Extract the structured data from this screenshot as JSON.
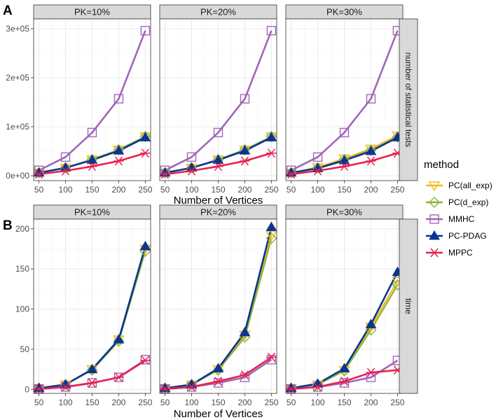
{
  "chart_data": [
    {
      "panel_label": "A",
      "type": "line",
      "facet_labels": [
        "PK=10%",
        "PK=20%",
        "PK=30%"
      ],
      "strip_label": "number of statistical tests",
      "xlabel": "Number of Vertices",
      "x": [
        50,
        100,
        150,
        200,
        250
      ],
      "ylim": [
        -10000,
        320000
      ],
      "yticks": [
        0,
        100000,
        200000,
        300000
      ],
      "ytick_labels": [
        "0e+00",
        "1e+05",
        "2e+05",
        "3e+05"
      ],
      "grid": true,
      "facets": [
        {
          "label": "PK=10%",
          "series": [
            {
              "name": "PC(all_exp)",
              "values": [
                6000,
                16000,
                33000,
                53000,
                80000
              ]
            },
            {
              "name": "PC(d_exp)",
              "values": [
                6000,
                16000,
                33000,
                53000,
                80000
              ]
            },
            {
              "name": "MMHC",
              "values": [
                11000,
                38000,
                88000,
                157000,
                296000
              ]
            },
            {
              "name": "PC-PDAG",
              "values": [
                6000,
                16000,
                32000,
                51000,
                78000
              ]
            },
            {
              "name": "MPPC",
              "values": [
                3000,
                10000,
                19000,
                30000,
                46000
              ]
            }
          ]
        },
        {
          "label": "PK=20%",
          "series": [
            {
              "name": "PC(all_exp)",
              "values": [
                6000,
                16000,
                33000,
                53000,
                80000
              ]
            },
            {
              "name": "PC(d_exp)",
              "values": [
                6000,
                16000,
                33000,
                53000,
                80000
              ]
            },
            {
              "name": "MMHC",
              "values": [
                11000,
                38000,
                88000,
                157000,
                296000
              ]
            },
            {
              "name": "PC-PDAG",
              "values": [
                6000,
                16000,
                32000,
                51000,
                78000
              ]
            },
            {
              "name": "MPPC",
              "values": [
                3000,
                10000,
                19000,
                30000,
                46000
              ]
            }
          ]
        },
        {
          "label": "PK=30%",
          "series": [
            {
              "name": "PC(all_exp)",
              "values": [
                6000,
                17000,
                35000,
                55000,
                82000
              ]
            },
            {
              "name": "PC(d_exp)",
              "values": [
                6000,
                16000,
                33000,
                52000,
                79000
              ]
            },
            {
              "name": "MMHC",
              "values": [
                11000,
                38000,
                88000,
                157000,
                296000
              ]
            },
            {
              "name": "PC-PDAG",
              "values": [
                6000,
                15000,
                31000,
                50000,
                78000
              ]
            },
            {
              "name": "MPPC",
              "values": [
                3000,
                10000,
                19000,
                30000,
                46000
              ]
            }
          ]
        }
      ]
    },
    {
      "panel_label": "B",
      "type": "line",
      "facet_labels": [
        "PK=10%",
        "PK=20%",
        "PK=30%"
      ],
      "strip_label": "time",
      "xlabel": "Number of Vertices",
      "x": [
        50,
        100,
        150,
        200,
        250
      ],
      "ylim": [
        -5,
        212
      ],
      "yticks": [
        0,
        50,
        100,
        150,
        200
      ],
      "ytick_labels": [
        "0",
        "50",
        "100",
        "150",
        "200"
      ],
      "grid": true,
      "facets": [
        {
          "label": "PK=10%",
          "series": [
            {
              "name": "PC(all_exp)",
              "values": [
                1.5,
                6,
                25,
                62,
                175
              ]
            },
            {
              "name": "PC(d_exp)",
              "values": [
                1.5,
                6,
                24,
                60,
                172
              ]
            },
            {
              "name": "MMHC",
              "values": [
                0.5,
                3,
                8,
                15,
                37
              ]
            },
            {
              "name": "PC-PDAG",
              "values": [
                1.5,
                6,
                25,
                62,
                178
              ]
            },
            {
              "name": "MPPC",
              "values": [
                0.5,
                3,
                8,
                15,
                36
              ]
            }
          ]
        },
        {
          "label": "PK=20%",
          "series": [
            {
              "name": "PC(all_exp)",
              "values": [
                1.5,
                6,
                25,
                68,
                192
              ]
            },
            {
              "name": "PC(d_exp)",
              "values": [
                1.5,
                6,
                24,
                65,
                188
              ]
            },
            {
              "name": "MMHC",
              "values": [
                0.5,
                3,
                8,
                15,
                37
              ]
            },
            {
              "name": "PC-PDAG",
              "values": [
                1.5,
                6,
                26,
                71,
                202
              ]
            },
            {
              "name": "MPPC",
              "values": [
                0.5,
                3,
                10,
                18,
                40
              ]
            }
          ]
        },
        {
          "label": "PK=30%",
          "series": [
            {
              "name": "PC(all_exp)",
              "values": [
                1.5,
                6,
                24,
                78,
                135
              ]
            },
            {
              "name": "PC(d_exp)",
              "values": [
                1.5,
                6,
                23,
                74,
                130
              ]
            },
            {
              "name": "MMHC",
              "values": [
                0.5,
                3,
                8,
                15,
                36
              ]
            },
            {
              "name": "PC-PDAG",
              "values": [
                1.5,
                7,
                26,
                81,
                146
              ]
            },
            {
              "name": "MPPC",
              "values": [
                0.5,
                3,
                10,
                21,
                24
              ]
            }
          ]
        }
      ]
    }
  ],
  "legend": {
    "title": "method",
    "placement": "right",
    "items": [
      {
        "name": "PC(all_exp)",
        "color": "#f5b81c",
        "marker": "triangle-down-open"
      },
      {
        "name": "PC(d_exp)",
        "color": "#8db43a",
        "marker": "diamond-open"
      },
      {
        "name": "MMHC",
        "color": "#a066b8",
        "marker": "square-open"
      },
      {
        "name": "PC-PDAG",
        "color": "#0a3592",
        "marker": "triangle-up-filled"
      },
      {
        "name": "MPPC",
        "color": "#e8224f",
        "marker": "asterisk"
      }
    ]
  },
  "colors": {
    "panel_bg": "#ffffff",
    "panel_border": "#333333",
    "strip_bg": "#d9d9d9",
    "grid_major": "#ebebeb",
    "grid_minor": "#f5f5f5"
  }
}
